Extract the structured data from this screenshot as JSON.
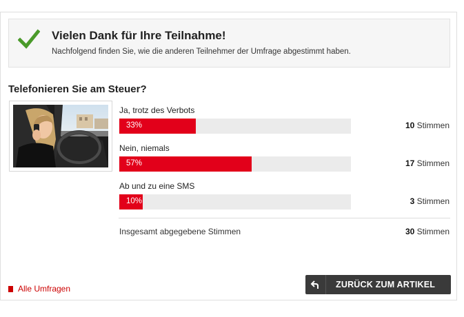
{
  "thanks": {
    "title": "Vielen Dank für Ihre Teilnahme!",
    "subtitle": "Nachfolgend finden Sie, wie die anderen Teilnehmer der Umfrage abgestimmt haben."
  },
  "poll": {
    "question": "Telefonieren Sie am Steuer?",
    "answers": [
      {
        "label": "Ja, trotz des Verbots",
        "percent": 33,
        "percent_text": "33%",
        "votes": "10",
        "votes_unit": "Stimmen"
      },
      {
        "label": "Nein, niemals",
        "percent": 57,
        "percent_text": "57%",
        "votes": "17",
        "votes_unit": "Stimmen"
      },
      {
        "label": "Ab und zu eine SMS",
        "percent": 10,
        "percent_text": "10%",
        "votes": "3",
        "votes_unit": "Stimmen"
      }
    ],
    "total_label": "Insgesamt abgegebene Stimmen",
    "total_votes": "30",
    "total_unit": "Stimmen"
  },
  "footer": {
    "all_polls": "Alle Umfragen",
    "back_button": "ZURÜCK ZUM ARTIKEL"
  },
  "colors": {
    "accent": "#e2001a",
    "check": "#4a9a2a",
    "button_bg": "#3a3a3a"
  },
  "icons": {
    "check": "check-icon",
    "back": "back-arrow-icon",
    "bullet": "square-bullet-icon"
  }
}
